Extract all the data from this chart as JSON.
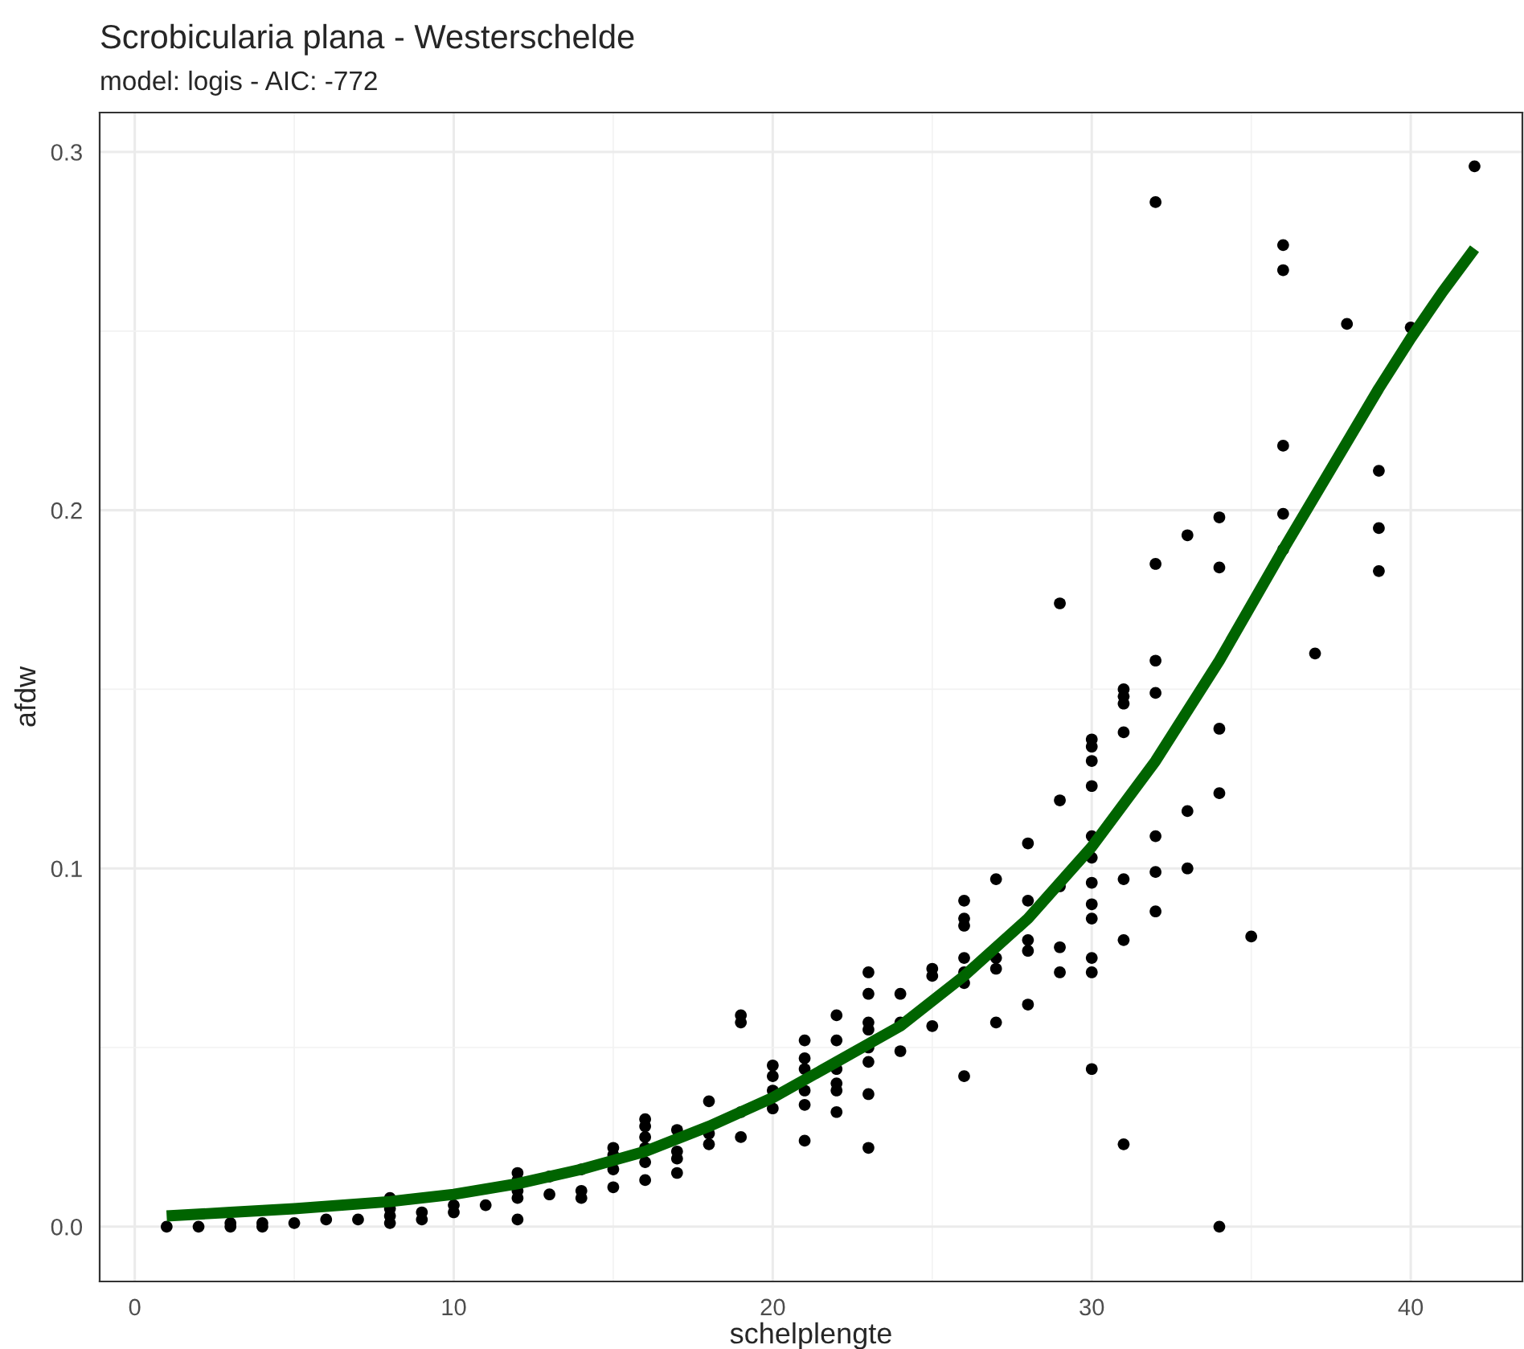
{
  "chart_data": {
    "type": "scatter",
    "title": "Scrobicularia plana - Westerschelde",
    "subtitle": "model: logis - AIC: -772",
    "xlabel": "schelplengte",
    "ylabel": "afdw",
    "series": [
      {
        "color": "#000000",
        "marker": "circle",
        "x": [
          1,
          2,
          3,
          3,
          4,
          4,
          5,
          6,
          7,
          8,
          8,
          8,
          8,
          9,
          9,
          10,
          10,
          11,
          12,
          12,
          12,
          12,
          12,
          13,
          13,
          14,
          14,
          14,
          15,
          15,
          15,
          15,
          16,
          16,
          16,
          16,
          16,
          16,
          17,
          17,
          17,
          17,
          18,
          18,
          18,
          19,
          19,
          19,
          19,
          20,
          20,
          20,
          20,
          21,
          21,
          21,
          21,
          21,
          21,
          22,
          22,
          22,
          22,
          22,
          22,
          23,
          23,
          23,
          23,
          23,
          23,
          23,
          23,
          24,
          24,
          24,
          25,
          25,
          25,
          26,
          26,
          26,
          26,
          26,
          26,
          26,
          27,
          27,
          27,
          27,
          28,
          28,
          28,
          28,
          28,
          29,
          29,
          29,
          29,
          29,
          30,
          30,
          30,
          30,
          30,
          30,
          30,
          30,
          30,
          30,
          30,
          30,
          31,
          31,
          31,
          31,
          31,
          31,
          31,
          32,
          32,
          32,
          32,
          32,
          32,
          32,
          33,
          33,
          33,
          34,
          34,
          34,
          34,
          34,
          35,
          36,
          36,
          36,
          36,
          36,
          37,
          38,
          39,
          39,
          39,
          40,
          42
        ],
        "values": [
          0.0,
          0.0,
          0.0,
          0.001,
          0.0,
          0.001,
          0.001,
          0.002,
          0.002,
          0.001,
          0.003,
          0.005,
          0.008,
          0.002,
          0.004,
          0.004,
          0.006,
          0.006,
          0.002,
          0.008,
          0.01,
          0.015,
          0.013,
          0.009,
          0.014,
          0.008,
          0.01,
          0.016,
          0.011,
          0.016,
          0.02,
          0.022,
          0.013,
          0.018,
          0.022,
          0.025,
          0.028,
          0.03,
          0.015,
          0.019,
          0.021,
          0.027,
          0.023,
          0.026,
          0.035,
          0.025,
          0.032,
          0.057,
          0.059,
          0.033,
          0.038,
          0.042,
          0.045,
          0.024,
          0.038,
          0.044,
          0.047,
          0.052,
          0.034,
          0.032,
          0.038,
          0.044,
          0.052,
          0.059,
          0.04,
          0.022,
          0.037,
          0.046,
          0.05,
          0.055,
          0.057,
          0.065,
          0.071,
          0.049,
          0.057,
          0.065,
          0.056,
          0.07,
          0.072,
          0.042,
          0.068,
          0.071,
          0.075,
          0.084,
          0.086,
          0.091,
          0.057,
          0.072,
          0.075,
          0.097,
          0.062,
          0.077,
          0.08,
          0.091,
          0.107,
          0.071,
          0.078,
          0.095,
          0.119,
          0.174,
          0.044,
          0.071,
          0.075,
          0.086,
          0.09,
          0.096,
          0.103,
          0.109,
          0.123,
          0.13,
          0.134,
          0.136,
          0.023,
          0.08,
          0.097,
          0.138,
          0.146,
          0.148,
          0.15,
          0.088,
          0.099,
          0.109,
          0.149,
          0.158,
          0.185,
          0.286,
          0.1,
          0.116,
          0.193,
          0.0,
          0.121,
          0.139,
          0.184,
          0.198,
          0.081,
          0.189,
          0.199,
          0.218,
          0.267,
          0.274,
          0.16,
          0.252,
          0.183,
          0.195,
          0.211,
          0.251,
          0.296
        ]
      },
      {
        "type": "line",
        "color": "#006400",
        "line_style": "solid",
        "x": [
          1,
          3,
          5,
          8,
          10,
          12,
          14,
          16,
          18,
          20,
          22,
          24,
          26,
          28,
          30,
          32,
          34,
          36,
          38,
          39,
          40,
          41,
          42
        ],
        "values": [
          0.003,
          0.004,
          0.005,
          0.007,
          0.009,
          0.012,
          0.016,
          0.021,
          0.028,
          0.036,
          0.046,
          0.056,
          0.07,
          0.086,
          0.106,
          0.13,
          0.158,
          0.189,
          0.219,
          0.234,
          0.248,
          0.261,
          0.273
        ]
      }
    ],
    "xlim": [
      -1.1,
      43.5
    ],
    "ylim": [
      -0.0153,
      0.311
    ],
    "xticks": [
      0,
      10,
      20,
      30,
      40
    ],
    "yticks": [
      {
        "value": 0,
        "label": "0.0"
      },
      0.1,
      0.2,
      0.3
    ],
    "grid": true,
    "legend": false
  }
}
